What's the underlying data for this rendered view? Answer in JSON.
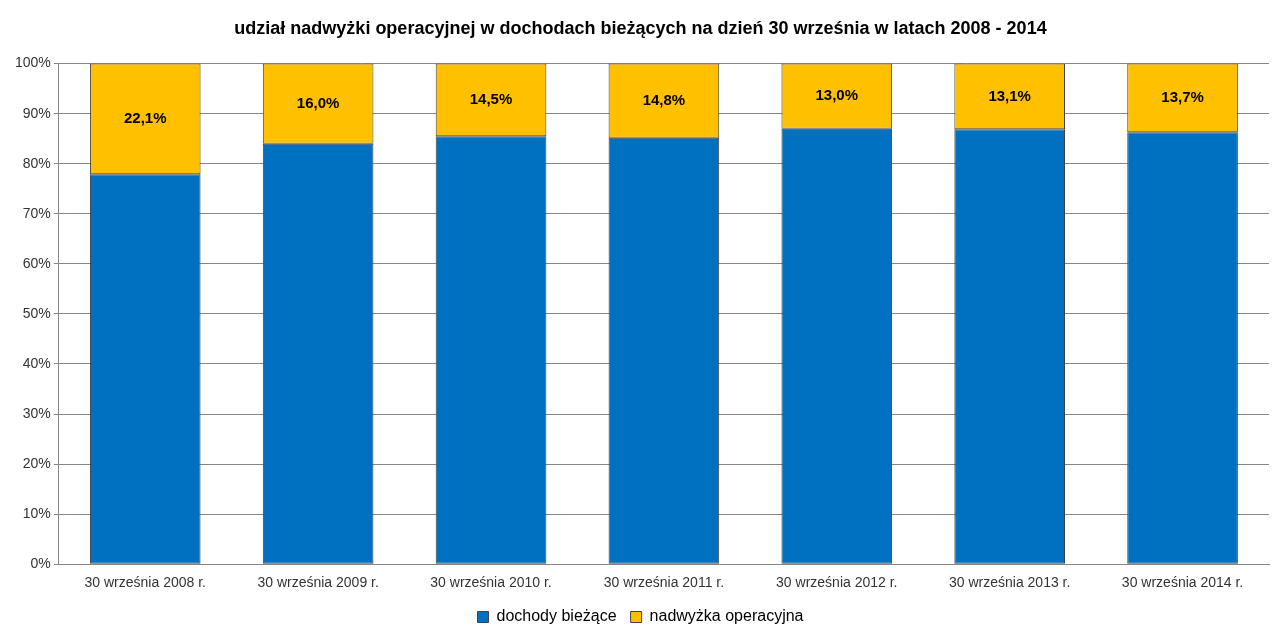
{
  "chart_data": {
    "type": "bar",
    "title": "udział nadwyżki operacyjnej w dochodach bieżących na dzień 30 września w latach 2008 - 2014",
    "categories": [
      "30 września 2008 r.",
      "30 września 2009 r.",
      "30 września 2010 r.",
      "30 września 2011 r.",
      "30 września 2012 r.",
      "30 września 2013 r.",
      "30 września 2014 r."
    ],
    "series": [
      {
        "name": "dochody bieżące",
        "color": "#0070c0",
        "values": [
          77.9,
          84.0,
          85.5,
          85.2,
          87.0,
          86.9,
          86.3
        ]
      },
      {
        "name": "nadwyżka operacyjna",
        "color": "#ffc000",
        "values": [
          22.1,
          16.0,
          14.5,
          14.8,
          13.0,
          13.1,
          13.7
        ],
        "data_labels": true,
        "value_labels": [
          "22,1%",
          "16,0%",
          "14,5%",
          "14,8%",
          "13,0%",
          "13,1%",
          "13,7%"
        ]
      }
    ],
    "stacked": true,
    "ylim": [
      0,
      100
    ],
    "yticks": [
      {
        "value": 0,
        "label": "0%"
      },
      {
        "value": 10,
        "label": "10%"
      },
      {
        "value": 20,
        "label": "20%"
      },
      {
        "value": 30,
        "label": "30%"
      },
      {
        "value": 40,
        "label": "40%"
      },
      {
        "value": 50,
        "label": "50%"
      },
      {
        "value": 60,
        "label": "60%"
      },
      {
        "value": 70,
        "label": "70%"
      },
      {
        "value": 80,
        "label": "80%"
      },
      {
        "value": 90,
        "label": "90%"
      },
      {
        "value": 100,
        "label": "100%"
      }
    ],
    "grid": true,
    "legend": "bottom"
  }
}
